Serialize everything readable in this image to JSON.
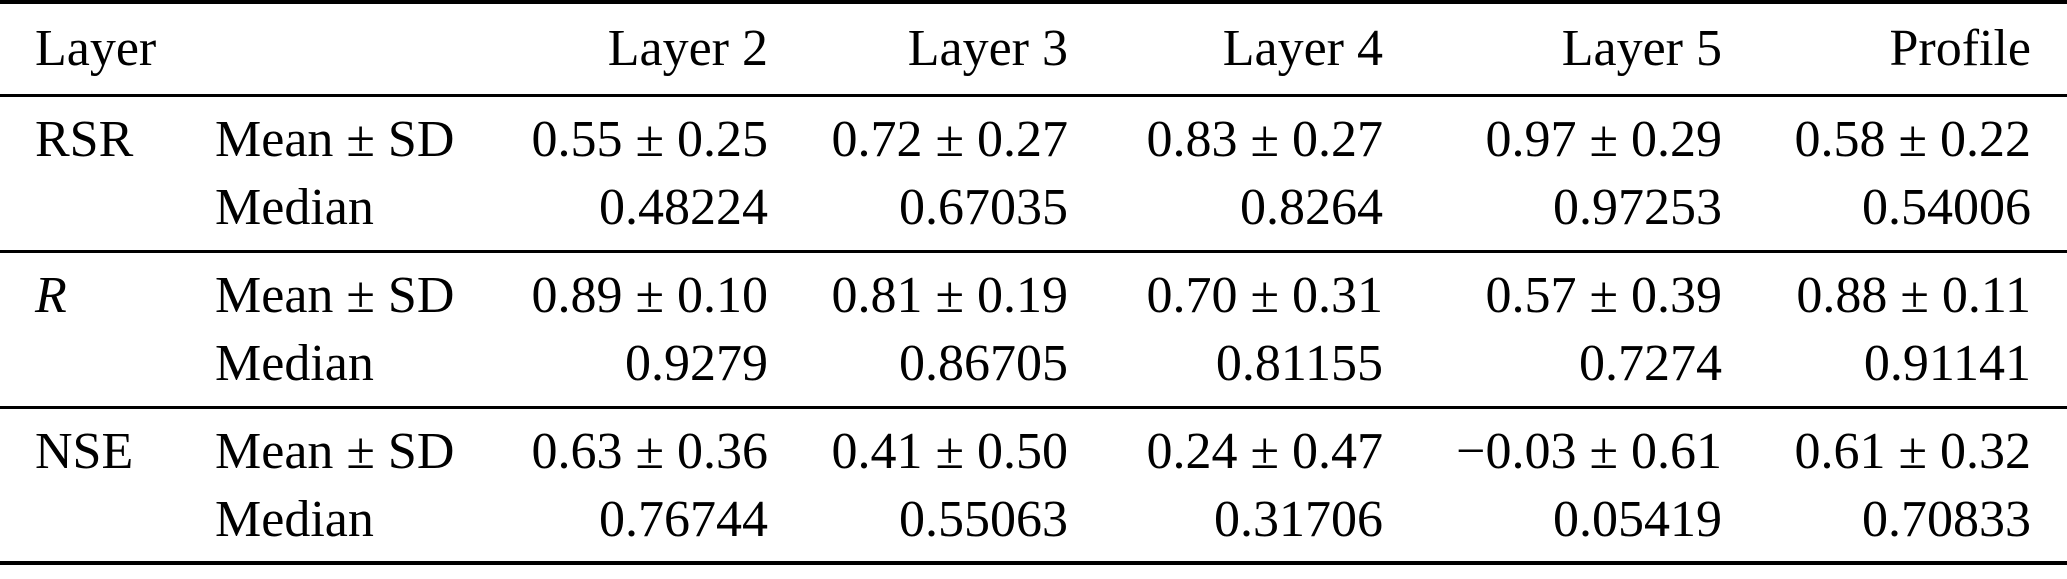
{
  "table": {
    "corner_label": "Layer",
    "columns": [
      "Layer 2",
      "Layer 3",
      "Layer 4",
      "Layer 5",
      "Profile"
    ],
    "stat_labels": {
      "mean": "Mean ± SD",
      "median": "Median"
    },
    "groups": [
      {
        "metric": "RSR",
        "mean_sd": [
          "0.55 ± 0.25",
          "0.72 ± 0.27",
          "0.83 ± 0.27",
          "0.97 ± 0.29",
          "0.58 ± 0.22"
        ],
        "median": [
          "0.48224",
          "0.67035",
          "0.8264",
          "0.97253",
          "0.54006"
        ]
      },
      {
        "metric": "R",
        "mean_sd": [
          "0.89 ± 0.10",
          "0.81 ± 0.19",
          "0.70 ± 0.31",
          "0.57 ± 0.39",
          "0.88 ± 0.11"
        ],
        "median": [
          "0.9279",
          "0.86705",
          "0.81155",
          "0.7274",
          "0.91141"
        ]
      },
      {
        "metric": "NSE",
        "mean_sd": [
          "0.63 ± 0.36",
          "0.41 ± 0.50",
          "0.24 ± 0.47",
          "−0.03 ± 0.61",
          "0.61 ± 0.32"
        ],
        "median": [
          "0.76744",
          "0.55063",
          "0.31706",
          "0.05419",
          "0.70833"
        ]
      }
    ],
    "text_color": "#000000",
    "background_color": "#ffffff"
  }
}
